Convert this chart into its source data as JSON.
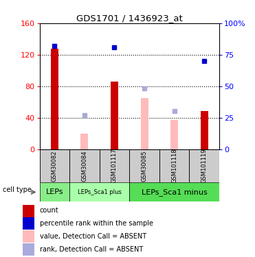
{
  "title": "GDS1701 / 1436923_at",
  "samples": [
    "GSM30082",
    "GSM30084",
    "GSM101117",
    "GSM30085",
    "GSM101118",
    "GSM101119"
  ],
  "count_values": [
    128,
    null,
    86,
    null,
    null,
    48
  ],
  "count_color": "#cc0000",
  "absent_value_values": [
    null,
    20,
    null,
    65,
    37,
    null
  ],
  "absent_value_color": "#ffbbbb",
  "percentile_rank_values": [
    82,
    null,
    81,
    null,
    null,
    70
  ],
  "percentile_rank_color": "#0000cc",
  "absent_rank_values": [
    null,
    27,
    null,
    48,
    30,
    null
  ],
  "absent_rank_color": "#aaaadd",
  "ylim_left": [
    0,
    160
  ],
  "ylim_right": [
    0,
    100
  ],
  "yticks_left": [
    0,
    40,
    80,
    120,
    160
  ],
  "yticks_right": [
    0,
    25,
    50,
    75,
    100
  ],
  "ytick_labels_right": [
    "0",
    "25",
    "50",
    "75",
    "100%"
  ],
  "cell_types": [
    {
      "label": "LEPs",
      "span": [
        0,
        1
      ],
      "color": "#88ee88",
      "fontsize": 8
    },
    {
      "label": "LEPs_Sca1 plus",
      "span": [
        1,
        3
      ],
      "color": "#aaffaa",
      "fontsize": 6
    },
    {
      "label": "LEPs_Sca1 minus",
      "span": [
        3,
        6
      ],
      "color": "#55dd55",
      "fontsize": 8
    }
  ],
  "bar_width": 0.25,
  "dot_size": 25,
  "hgrid_at": [
    40,
    80,
    120
  ],
  "sample_box_color": "#cccccc",
  "legend_items": [
    {
      "color": "#cc0000",
      "label": "count"
    },
    {
      "color": "#0000cc",
      "label": "percentile rank within the sample"
    },
    {
      "color": "#ffbbbb",
      "label": "value, Detection Call = ABSENT"
    },
    {
      "color": "#aaaadd",
      "label": "rank, Detection Call = ABSENT"
    }
  ]
}
